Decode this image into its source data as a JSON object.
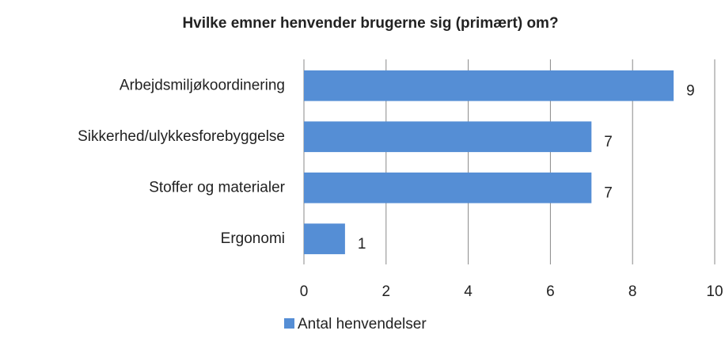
{
  "chart_data": {
    "type": "bar",
    "orientation": "horizontal",
    "title": "Hvilke emner henvender brugerne sig (primært) om?",
    "categories": [
      "Arbejdsmiljøkoordinering",
      "Sikkerhed/ulykkesforebyggelse",
      "Stoffer og materialer",
      "Ergonomi"
    ],
    "series": [
      {
        "name": "Antal henvendelser",
        "color": "#558ed5",
        "values": [
          9,
          7,
          7,
          1
        ]
      }
    ],
    "xlim": [
      0,
      10
    ],
    "xticks": [
      0,
      2,
      4,
      6,
      8,
      10
    ],
    "grid": true,
    "legend": "bottom"
  }
}
